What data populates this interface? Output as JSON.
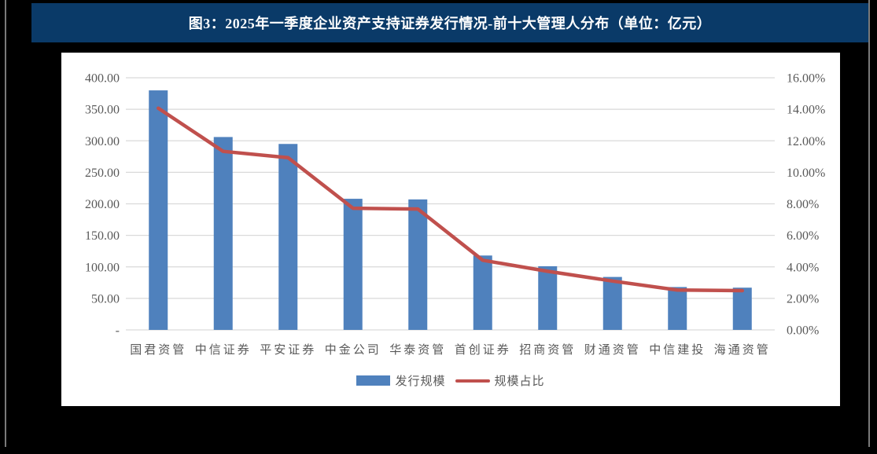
{
  "banner": {
    "title": "图3：2025年一季度企业资产支持证券发行情况-前十大管理人分布（单位：亿元）"
  },
  "colors": {
    "page_bg": "#000000",
    "side_line": "#7a7a7a",
    "banner_bg": "#0a3a68",
    "title_text": "#ffffff",
    "panel_bg": "#ffffff",
    "bar_blue": "#4F81BD",
    "line_red": "#C0504D",
    "grid_line": "#D9D9D9",
    "axis_text": "#595959"
  },
  "chart_data": {
    "type": "combo-bar-line",
    "categories": [
      "国君资管",
      "中信证券",
      "平安证券",
      "中金公司",
      "华泰资管",
      "首创证券",
      "招商资管",
      "财通资管",
      "中信建投",
      "海通资管"
    ],
    "series": [
      {
        "name": "发行规模",
        "type": "bar",
        "axis": "left",
        "unit": "亿元",
        "color": "#4F81BD",
        "values": [
          380,
          306,
          295,
          208,
          207,
          118,
          101,
          84,
          68,
          67
        ]
      },
      {
        "name": "规模占比",
        "type": "line",
        "axis": "right",
        "unit": "%",
        "color": "#C0504D",
        "values": [
          14.07,
          11.33,
          10.93,
          7.72,
          7.67,
          4.42,
          3.72,
          3.1,
          2.53,
          2.49
        ]
      }
    ],
    "left_axis": {
      "min": 0,
      "max": 400,
      "step": 50,
      "tick_labels": [
        "400.00",
        "350.00",
        "300.00",
        "250.00",
        "200.00",
        "150.00",
        "100.00",
        "50.00",
        "-"
      ]
    },
    "right_axis": {
      "min": 0,
      "max": 16,
      "step": 2,
      "tick_labels": [
        "16.00%",
        "14.00%",
        "12.00%",
        "10.00%",
        "8.00%",
        "6.00%",
        "4.00%",
        "2.00%",
        "0.00%"
      ]
    },
    "grid": true,
    "legend_position": "bottom"
  }
}
